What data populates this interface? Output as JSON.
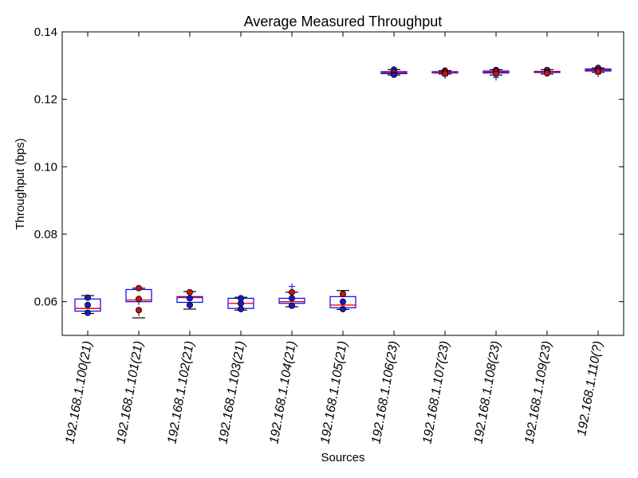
{
  "chart_data": {
    "type": "box",
    "title": "Average Measured Throughput",
    "xlabel": "Sources",
    "ylabel": "Throughput (bps)",
    "ylim": [
      0.05,
      0.14
    ],
    "yticks": [
      0.06,
      0.08,
      0.1,
      0.12,
      0.14
    ],
    "ytick_labels": [
      "0.06",
      "0.08",
      "0.10",
      "0.12",
      "0.14"
    ],
    "grid": false,
    "categories": [
      "192.168.1.100(21)",
      "192.168.1.101(21)",
      "192.168.1.102(21)",
      "192.168.1.103(21)",
      "192.168.1.104(21)",
      "192.168.1.105(21)",
      "192.168.1.106(23)",
      "192.168.1.107(23)",
      "192.168.1.108(23)",
      "192.168.1.109(23)",
      "192.168.1.110(?)"
    ],
    "boxes": [
      {
        "whisker_low": 0.0565,
        "q1": 0.0572,
        "median": 0.058,
        "q3": 0.0608,
        "whisker_high": 0.0618,
        "fliers": []
      },
      {
        "whisker_low": 0.0552,
        "q1": 0.06,
        "median": 0.0605,
        "q3": 0.0636,
        "whisker_high": 0.064,
        "fliers": []
      },
      {
        "whisker_low": 0.0578,
        "q1": 0.0598,
        "median": 0.0612,
        "q3": 0.0615,
        "whisker_high": 0.063,
        "fliers": []
      },
      {
        "whisker_low": 0.0575,
        "q1": 0.058,
        "median": 0.0595,
        "q3": 0.061,
        "whisker_high": 0.0613,
        "fliers": []
      },
      {
        "whisker_low": 0.0585,
        "q1": 0.0595,
        "median": 0.06,
        "q3": 0.061,
        "whisker_high": 0.0628,
        "fliers": [
          0.0645
        ]
      },
      {
        "whisker_low": 0.0577,
        "q1": 0.0582,
        "median": 0.059,
        "q3": 0.0615,
        "whisker_high": 0.0633,
        "fliers": []
      },
      {
        "whisker_low": 0.1272,
        "q1": 0.1276,
        "median": 0.1279,
        "q3": 0.1282,
        "whisker_high": 0.1288,
        "fliers": []
      },
      {
        "whisker_low": 0.1275,
        "q1": 0.1278,
        "median": 0.128,
        "q3": 0.1282,
        "whisker_high": 0.1285,
        "fliers": [
          0.127
        ]
      },
      {
        "whisker_low": 0.1272,
        "q1": 0.1278,
        "median": 0.1281,
        "q3": 0.1284,
        "whisker_high": 0.1288,
        "fliers": [
          0.1265
        ]
      },
      {
        "whisker_low": 0.1275,
        "q1": 0.128,
        "median": 0.1282,
        "q3": 0.1283,
        "whisker_high": 0.1288,
        "fliers": []
      },
      {
        "whisker_low": 0.128,
        "q1": 0.1284,
        "median": 0.1287,
        "q3": 0.129,
        "whisker_high": 0.1293,
        "fliers": [
          0.1275
        ]
      }
    ],
    "points": [
      [
        {
          "y": 0.0612,
          "c": "blue"
        },
        {
          "y": 0.059,
          "c": "blue"
        },
        {
          "y": 0.0567,
          "c": "blue"
        }
      ],
      [
        {
          "y": 0.064,
          "c": "red"
        },
        {
          "y": 0.0608,
          "c": "red"
        },
        {
          "y": 0.0575,
          "c": "red"
        }
      ],
      [
        {
          "y": 0.0628,
          "c": "red"
        },
        {
          "y": 0.061,
          "c": "blue"
        },
        {
          "y": 0.059,
          "c": "blue"
        }
      ],
      [
        {
          "y": 0.061,
          "c": "blue"
        },
        {
          "y": 0.0595,
          "c": "blue"
        },
        {
          "y": 0.0578,
          "c": "blue"
        }
      ],
      [
        {
          "y": 0.0628,
          "c": "red"
        },
        {
          "y": 0.061,
          "c": "blue"
        },
        {
          "y": 0.0588,
          "c": "blue"
        }
      ],
      [
        {
          "y": 0.0623,
          "c": "red"
        },
        {
          "y": 0.06,
          "c": "blue"
        },
        {
          "y": 0.0578,
          "c": "blue"
        }
      ],
      [
        {
          "y": 0.1288,
          "c": "blue"
        },
        {
          "y": 0.128,
          "c": "red"
        },
        {
          "y": 0.1273,
          "c": "blue"
        }
      ],
      [
        {
          "y": 0.1285,
          "c": "red"
        },
        {
          "y": 0.128,
          "c": "red"
        },
        {
          "y": 0.1276,
          "c": "red"
        }
      ],
      [
        {
          "y": 0.1287,
          "c": "blue"
        },
        {
          "y": 0.1282,
          "c": "red"
        },
        {
          "y": 0.1276,
          "c": "red"
        }
      ],
      [
        {
          "y": 0.1287,
          "c": "red"
        },
        {
          "y": 0.1282,
          "c": "blue"
        },
        {
          "y": 0.1277,
          "c": "red"
        }
      ],
      [
        {
          "y": 0.1293,
          "c": "red"
        },
        {
          "y": 0.1288,
          "c": "blue"
        },
        {
          "y": 0.1282,
          "c": "red"
        }
      ]
    ],
    "colors": {
      "box": "#0000ff",
      "median": "#ff0000",
      "whisker": "#000000",
      "flier": "#0000ff",
      "point_red": "#cc1010",
      "point_blue": "#1a1acc",
      "point_edge": "#000000"
    }
  }
}
